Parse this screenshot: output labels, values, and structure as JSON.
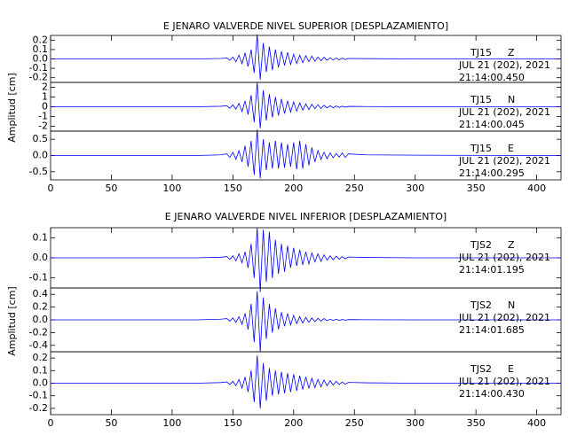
{
  "chart_data": [
    {
      "type": "line",
      "title": "E JENARO VALVERDE NIVEL SUPERIOR [DESPLAZAMIENTO]",
      "ylabel": "Amplitud [cm]",
      "color": "#0000ff",
      "xlim": [
        0,
        420
      ],
      "xticks": [
        0,
        50,
        100,
        150,
        200,
        250,
        300,
        350,
        400
      ],
      "x": [
        0,
        120,
        140,
        145,
        147.5,
        150,
        152.5,
        155,
        157.5,
        160,
        162.5,
        165,
        167.5,
        170,
        172.5,
        175,
        177.5,
        180,
        182.5,
        185,
        187.5,
        190,
        192.5,
        195,
        197.5,
        200,
        202.5,
        205,
        207.5,
        210,
        212.5,
        215,
        217.5,
        220,
        222.5,
        225,
        227.5,
        230,
        232.5,
        235,
        237.5,
        240,
        242.5,
        245,
        260,
        300,
        420
      ],
      "panels": [
        {
          "station": "TJ15",
          "channel": "Z",
          "date": "JUL 21 (202), 2021",
          "time": "21:14:00.450",
          "ylim": [
            -0.25,
            0.25
          ],
          "yticks": [
            -0.2,
            -0.1,
            {
              "value": 0,
              "label": "0.0"
            },
            0.1,
            0.2
          ],
          "values": [
            0,
            0,
            0.005,
            0.01,
            -0.015,
            0.02,
            -0.03,
            0.04,
            -0.05,
            0.06,
            -0.08,
            0.1,
            -0.15,
            0.26,
            -0.22,
            0.17,
            -0.14,
            0.13,
            -0.12,
            0.1,
            -0.09,
            0.08,
            -0.07,
            0.07,
            -0.06,
            0.05,
            -0.05,
            0.04,
            -0.04,
            0.035,
            -0.03,
            0.03,
            -0.025,
            0.02,
            -0.02,
            0.018,
            -0.015,
            0.012,
            -0.012,
            0.01,
            -0.01,
            0.008,
            -0.007,
            0.005,
            0.003,
            0,
            0
          ]
        },
        {
          "station": "TJ15",
          "channel": "N",
          "date": "JUL 21 (202), 2021",
          "time": "21:14:00.045",
          "ylim": [
            -2.5,
            2.5
          ],
          "yticks": [
            -2,
            -1,
            0,
            1,
            2
          ],
          "values": [
            0,
            0,
            0.05,
            0.1,
            -0.15,
            0.2,
            -0.25,
            0.35,
            -0.5,
            0.6,
            -0.8,
            1.2,
            -1.6,
            2.5,
            -2.2,
            1.7,
            -1.4,
            1.3,
            -1.1,
            1.0,
            -0.9,
            0.8,
            -0.7,
            0.6,
            -0.55,
            0.5,
            -0.45,
            0.4,
            -0.35,
            0.3,
            -0.3,
            0.25,
            -0.2,
            0.2,
            -0.18,
            0.15,
            -0.12,
            0.1,
            -0.1,
            0.08,
            -0.07,
            0.06,
            -0.05,
            0.04,
            0.02,
            0,
            0
          ]
        },
        {
          "station": "TJ15",
          "channel": "E",
          "date": "JUL 21 (202), 2021",
          "time": "21:14:00.295",
          "ylim": [
            -0.75,
            0.75
          ],
          "yticks": [
            -0.5,
            {
              "value": 0,
              "label": "0.0"
            },
            0.5
          ],
          "values": [
            0,
            0,
            0.02,
            0.05,
            -0.06,
            0.1,
            -0.12,
            0.15,
            -0.2,
            0.3,
            -0.35,
            0.45,
            -0.6,
            0.8,
            -0.7,
            0.5,
            -0.45,
            0.4,
            -0.4,
            0.45,
            -0.4,
            0.4,
            -0.38,
            0.35,
            -0.35,
            0.4,
            -0.42,
            0.45,
            -0.4,
            0.35,
            -0.3,
            0.25,
            -0.2,
            0.15,
            -0.12,
            0.1,
            -0.1,
            0.08,
            -0.07,
            0.06,
            -0.05,
            0.08,
            -0.06,
            0.05,
            0.02,
            0.01,
            0
          ]
        }
      ]
    },
    {
      "type": "line",
      "title": "E JENARO VALVERDE NIVEL INFERIOR [DESPLAZAMIENTO]",
      "ylabel": "Amplitud [cm]",
      "color": "#0000ff",
      "xlim": [
        0,
        420
      ],
      "xticks": [
        0,
        50,
        100,
        150,
        200,
        250,
        300,
        350,
        400
      ],
      "x": [
        0,
        120,
        140,
        145,
        147.5,
        150,
        152.5,
        155,
        157.5,
        160,
        162.5,
        165,
        167.5,
        170,
        172.5,
        175,
        177.5,
        180,
        182.5,
        185,
        187.5,
        190,
        192.5,
        195,
        197.5,
        200,
        202.5,
        205,
        207.5,
        210,
        212.5,
        215,
        217.5,
        220,
        222.5,
        225,
        227.5,
        230,
        232.5,
        235,
        237.5,
        240,
        242.5,
        245,
        260,
        300,
        420
      ],
      "panels": [
        {
          "station": "TJS2",
          "channel": "Z",
          "date": "JUL 21 (202), 2021",
          "time": "21:14:01.195",
          "ylim": [
            -0.15,
            0.15
          ],
          "yticks": [
            -0.1,
            {
              "value": 0,
              "label": "0.0"
            },
            0.1
          ],
          "values": [
            0,
            0,
            0.003,
            0.006,
            -0.008,
            0.01,
            -0.015,
            0.02,
            -0.025,
            0.03,
            -0.05,
            0.07,
            -0.1,
            0.15,
            -0.17,
            0.14,
            -0.12,
            0.13,
            -0.1,
            0.09,
            -0.08,
            0.07,
            -0.07,
            0.06,
            -0.05,
            0.05,
            -0.04,
            0.04,
            -0.035,
            0.03,
            -0.03,
            0.025,
            -0.02,
            0.02,
            -0.018,
            0.015,
            -0.012,
            0.01,
            -0.01,
            0.008,
            -0.007,
            0.006,
            -0.005,
            0.004,
            0.002,
            0,
            0
          ]
        },
        {
          "station": "TJS2",
          "channel": "N",
          "date": "JUL 21 (202), 2021",
          "time": "21:14:01.685",
          "ylim": [
            -0.5,
            0.5
          ],
          "yticks": [
            -0.4,
            -0.2,
            {
              "value": 0,
              "label": "0.0"
            },
            0.2,
            0.4
          ],
          "values": [
            0,
            0,
            0.01,
            0.02,
            -0.02,
            0.03,
            -0.04,
            0.05,
            -0.07,
            0.1,
            -0.15,
            0.25,
            -0.35,
            0.45,
            -0.5,
            0.35,
            -0.3,
            0.25,
            -0.2,
            0.18,
            -0.15,
            0.12,
            -0.1,
            0.1,
            -0.08,
            0.07,
            -0.06,
            0.05,
            -0.05,
            0.04,
            -0.04,
            0.03,
            -0.03,
            0.025,
            -0.02,
            0.02,
            -0.015,
            0.012,
            -0.01,
            0.01,
            -0.008,
            0.006,
            -0.005,
            0.004,
            0.002,
            0,
            0
          ]
        },
        {
          "station": "TJS2",
          "channel": "E",
          "date": "JUL 21 (202), 2021",
          "time": "21:14:00.430",
          "ylim": [
            -0.25,
            0.25
          ],
          "yticks": [
            -0.2,
            -0.1,
            {
              "value": 0,
              "label": "0.0"
            },
            0.1,
            0.2
          ],
          "values": [
            0,
            0,
            0.005,
            0.01,
            -0.01,
            0.015,
            -0.02,
            0.03,
            -0.04,
            0.05,
            -0.07,
            0.1,
            -0.15,
            0.22,
            -0.2,
            0.16,
            -0.14,
            0.12,
            -0.1,
            0.1,
            -0.09,
            0.09,
            -0.08,
            0.08,
            -0.07,
            0.07,
            -0.06,
            0.06,
            -0.05,
            0.05,
            -0.04,
            0.04,
            -0.035,
            0.03,
            -0.03,
            0.025,
            -0.02,
            0.02,
            -0.015,
            0.015,
            -0.01,
            0.01,
            -0.008,
            0.006,
            0.003,
            0,
            0
          ]
        }
      ]
    }
  ]
}
